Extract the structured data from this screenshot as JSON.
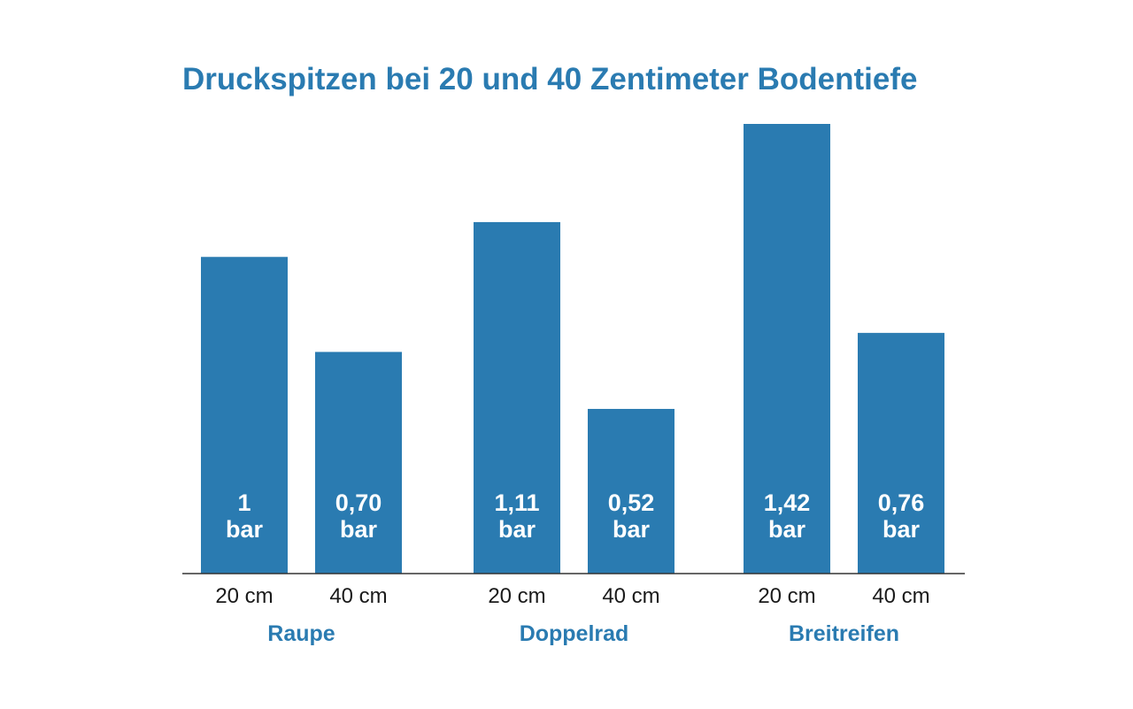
{
  "chart_data": {
    "type": "bar",
    "title": "Druckspitzen bei 20 und 40 Zentimeter Bodentiefe",
    "unit": "bar",
    "groups": [
      {
        "name": "Raupe",
        "bars": [
          {
            "depth": "20 cm",
            "value": 1.0,
            "label": "1"
          },
          {
            "depth": "40 cm",
            "value": 0.7,
            "label": "0,70"
          }
        ]
      },
      {
        "name": "Doppelrad",
        "bars": [
          {
            "depth": "20 cm",
            "value": 1.11,
            "label": "1,11"
          },
          {
            "depth": "40 cm",
            "value": 0.52,
            "label": "0,52"
          }
        ]
      },
      {
        "name": "Breitreifen",
        "bars": [
          {
            "depth": "20 cm",
            "value": 1.42,
            "label": "1,42"
          },
          {
            "depth": "40 cm",
            "value": 0.76,
            "label": "0,76"
          }
        ]
      }
    ],
    "ylim": [
      0,
      1.42
    ],
    "grid": false,
    "legend": "none"
  },
  "colors": {
    "bar": "#2a7bb1",
    "title": "#2a7bb1",
    "group_label": "#2a7bb1",
    "axis": "#333333"
  }
}
